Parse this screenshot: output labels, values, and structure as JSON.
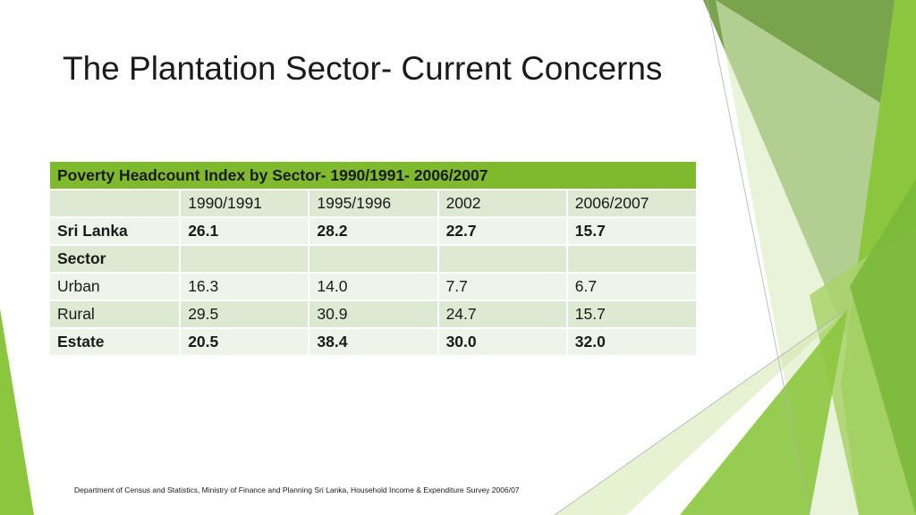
{
  "slide": {
    "title": "The Plantation Sector- Current Concerns",
    "footnote": "Department of Census and Statistics, Ministry of Finance and Planning Sri Lanka, Household Income & Expenditure Survey 2006/07"
  },
  "table": {
    "caption": "Poverty Headcount Index by Sector- 1990/1991- 2006/2007",
    "columns": [
      "",
      "1990/1991",
      "1995/1996",
      "2002",
      "2006/2007"
    ],
    "rows": [
      {
        "label": "Sri Lanka",
        "values": [
          "26.1",
          "28.2",
          "22.7",
          "15.7"
        ],
        "bold": true
      },
      {
        "label": "Sector",
        "values": [
          "",
          "",
          "",
          ""
        ],
        "bold": true
      },
      {
        "label": "Urban",
        "values": [
          "16.3",
          "14.0",
          "7.7",
          "6.7"
        ],
        "bold": false
      },
      {
        "label": "Rural",
        "values": [
          "29.5",
          "30.9",
          "24.7",
          "15.7"
        ],
        "bold": false
      },
      {
        "label": "Estate",
        "values": [
          "20.5",
          "38.4",
          "30.0",
          "32.0"
        ],
        "bold": true
      }
    ]
  },
  "theme": {
    "header_green": "#7fba2e",
    "row_dark": "#dde9d2",
    "row_light": "#eef4e9",
    "accent_greens": [
      "#8cc63f",
      "#6a9a3a",
      "#a8d26a",
      "#4e8a1e"
    ]
  }
}
